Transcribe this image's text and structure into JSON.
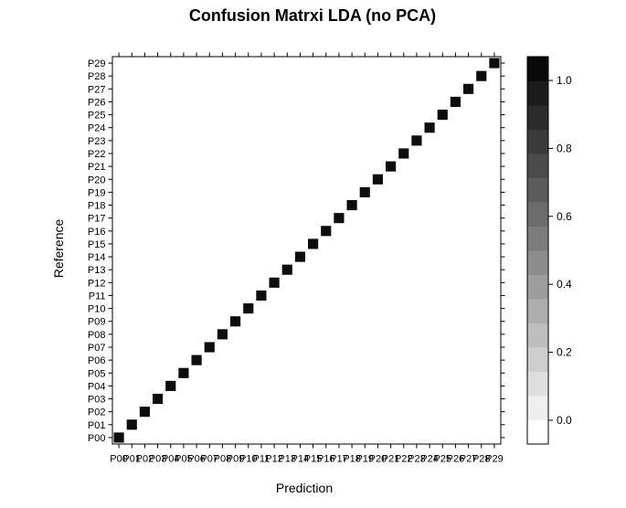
{
  "chart_data": {
    "type": "heatmap",
    "title": "Confusion Matrxi LDA (no PCA)",
    "xlabel": "Prediction",
    "ylabel": "Reference",
    "categories": [
      "P00",
      "P01",
      "P02",
      "P03",
      "P04",
      "P05",
      "P06",
      "P07",
      "P08",
      "P09",
      "P10",
      "P11",
      "P12",
      "P13",
      "P14",
      "P15",
      "P16",
      "P17",
      "P18",
      "P19",
      "P20",
      "P21",
      "P22",
      "P23",
      "P24",
      "P25",
      "P26",
      "P27",
      "P28",
      "P29"
    ],
    "values": "identity",
    "colorbar": {
      "ticks": [
        0.0,
        0.2,
        0.4,
        0.6,
        0.8,
        1.0
      ],
      "tick_labels": [
        "0.0",
        "0.2",
        "0.4",
        "0.6",
        "0.8",
        "1.0"
      ],
      "range": [
        -0.07,
        1.07
      ],
      "levels": 16
    },
    "scale": "grayscale",
    "grid": false
  }
}
